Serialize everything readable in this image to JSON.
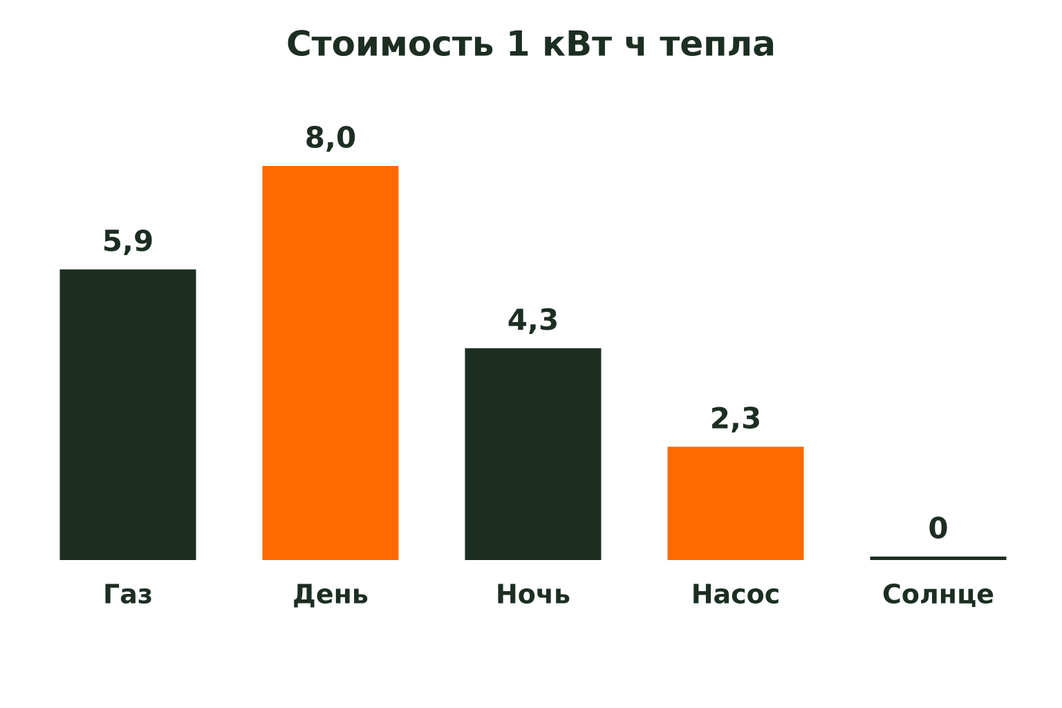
{
  "chart_data": {
    "type": "bar",
    "title": "Стоимость 1 кВт ч тепла",
    "categories": [
      "Газ",
      "День",
      "Ночь",
      "Насос",
      "Солнце"
    ],
    "values": [
      5.9,
      8.0,
      4.3,
      2.3,
      0
    ],
    "value_labels": [
      "5,9",
      "8,0",
      "4,3",
      "2,3",
      "0"
    ],
    "colors": [
      "#1c2e22",
      "#ff6a00",
      "#1c2e22",
      "#ff6a00",
      "#1c2e22"
    ]
  }
}
